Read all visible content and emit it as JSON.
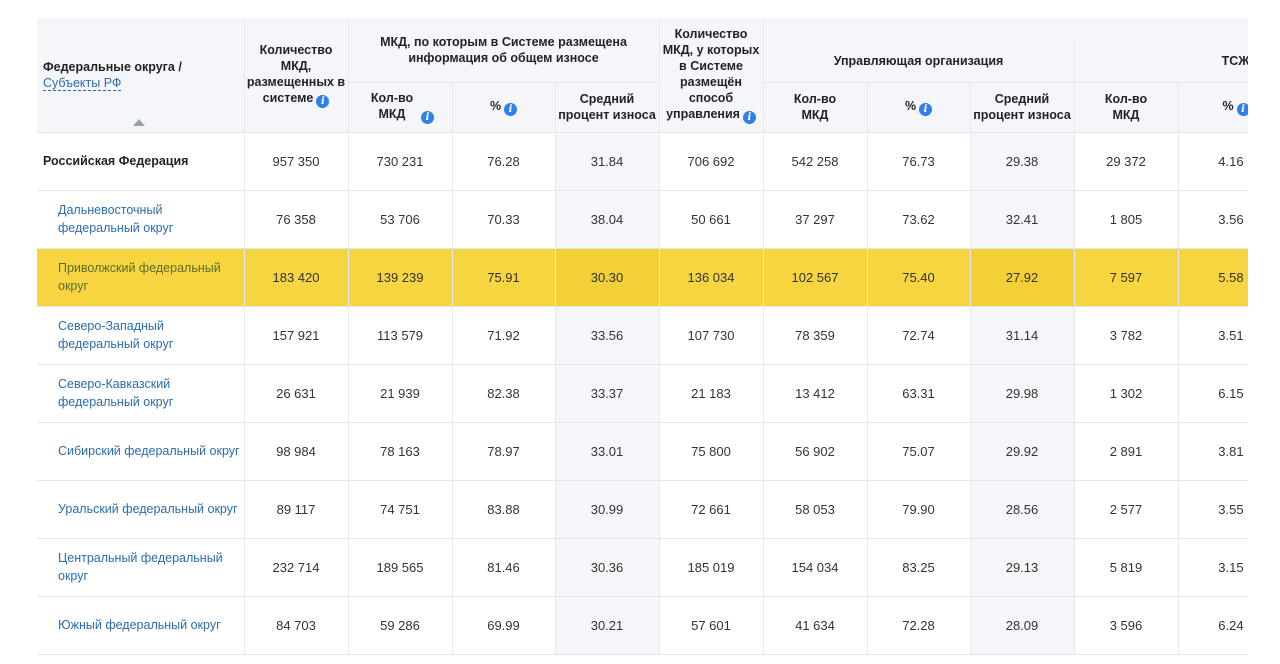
{
  "header": {
    "region_line1": "Федеральные округа /",
    "region_line2": "Субъекты РФ",
    "count_total": "Количество МКД, размещенных в системе",
    "wear_group": "МКД, по которым в Системе размещена информация об общем износе",
    "wear_count": "Кол-во МКД",
    "wear_pct": "%",
    "wear_avg": "Средний процент износа",
    "mgmt_total": "Количество МКД, у которых в Системе размещён способ управления",
    "uo_group": "Управляющая организация",
    "uo_count": "Кол-во МКД",
    "uo_pct": "%",
    "uo_avg": "Средний процент износа",
    "tszh_group": "ТСЖ",
    "tszh_count": "Кол-во МКД",
    "tszh_pct": "%",
    "info_icon": "i"
  },
  "rows": [
    {
      "name": "Российская Федерация",
      "c1": "957 350",
      "c2": "730 231",
      "c3": "76.28",
      "c4": "31.84",
      "c5": "706 692",
      "c6": "542 258",
      "c7": "76.73",
      "c8": "29.38",
      "c9": "29 372",
      "c10": "4.16"
    },
    {
      "name": "Дальневосточный федеральный округ",
      "c1": "76 358",
      "c2": "53 706",
      "c3": "70.33",
      "c4": "38.04",
      "c5": "50 661",
      "c6": "37 297",
      "c7": "73.62",
      "c8": "32.41",
      "c9": "1 805",
      "c10": "3.56"
    },
    {
      "name": "Приволжский федеральный округ",
      "c1": "183 420",
      "c2": "139 239",
      "c3": "75.91",
      "c4": "30.30",
      "c5": "136 034",
      "c6": "102 567",
      "c7": "75.40",
      "c8": "27.92",
      "c9": "7 597",
      "c10": "5.58"
    },
    {
      "name": "Северо-Западный федеральный округ",
      "c1": "157 921",
      "c2": "113 579",
      "c3": "71.92",
      "c4": "33.56",
      "c5": "107 730",
      "c6": "78 359",
      "c7": "72.74",
      "c8": "31.14",
      "c9": "3 782",
      "c10": "3.51"
    },
    {
      "name": "Северо-Кавказский федеральный округ",
      "c1": "26 631",
      "c2": "21 939",
      "c3": "82.38",
      "c4": "33.37",
      "c5": "21 183",
      "c6": "13 412",
      "c7": "63.31",
      "c8": "29.98",
      "c9": "1 302",
      "c10": "6.15"
    },
    {
      "name": "Сибирский федеральный округ",
      "c1": "98 984",
      "c2": "78 163",
      "c3": "78.97",
      "c4": "33.01",
      "c5": "75 800",
      "c6": "56 902",
      "c7": "75.07",
      "c8": "29.92",
      "c9": "2 891",
      "c10": "3.81"
    },
    {
      "name": "Уральский федеральный округ",
      "c1": "89 117",
      "c2": "74 751",
      "c3": "83.88",
      "c4": "30.99",
      "c5": "72 661",
      "c6": "58 053",
      "c7": "79.90",
      "c8": "28.56",
      "c9": "2 577",
      "c10": "3.55"
    },
    {
      "name": "Центральный федеральный округ",
      "c1": "232 714",
      "c2": "189 565",
      "c3": "81.46",
      "c4": "30.36",
      "c5": "185 019",
      "c6": "154 034",
      "c7": "83.25",
      "c8": "29.13",
      "c9": "5 819",
      "c10": "3.15"
    },
    {
      "name": "Южный федеральный округ",
      "c1": "84 703",
      "c2": "59 286",
      "c3": "69.99",
      "c4": "30.21",
      "c5": "57 601",
      "c6": "41 634",
      "c7": "72.28",
      "c8": "28.09",
      "c9": "3 596",
      "c10": "6.24"
    }
  ],
  "colors": {
    "highlight": "#f7d540",
    "link": "#2b6cb0",
    "info": "#2f80ed"
  }
}
